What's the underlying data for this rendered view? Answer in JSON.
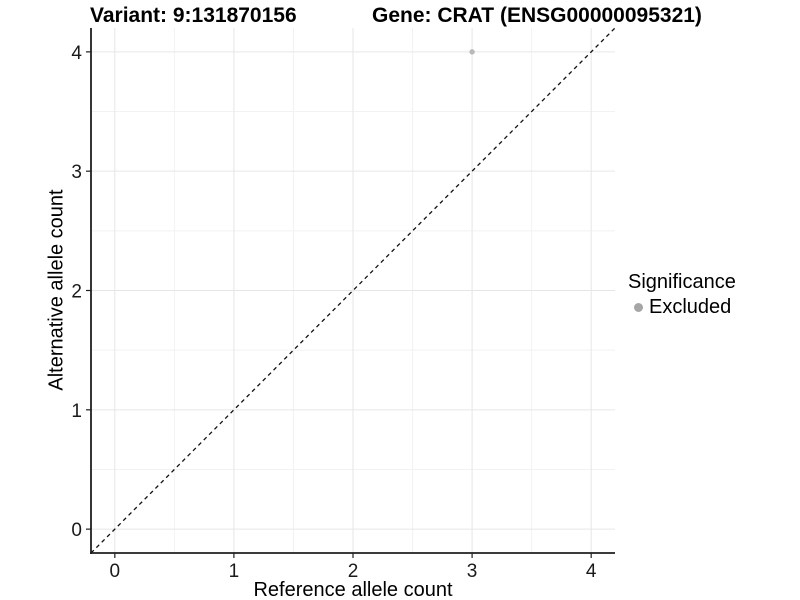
{
  "titles": {
    "variant": "Variant: 9:131870156",
    "gene": "Gene: CRAT (ENSG00000095321)"
  },
  "axes": {
    "x_label": "Reference allele count",
    "y_label": "Alternative allele count"
  },
  "legend": {
    "title": "Significance",
    "items": [
      {
        "label": "Excluded",
        "color": "#a6a6a6"
      }
    ]
  },
  "chart_data": {
    "type": "scatter",
    "title": "Variant: 9:131870156    Gene: CRAT (ENSG00000095321)",
    "xlabel": "Reference allele count",
    "ylabel": "Alternative allele count",
    "xlim": [
      -0.2,
      4.2
    ],
    "ylim": [
      -0.2,
      4.2
    ],
    "x_ticks": [
      0,
      1,
      2,
      3,
      4
    ],
    "y_ticks": [
      0,
      1,
      2,
      3,
      4
    ],
    "grid": {
      "major": true,
      "minor": true
    },
    "legend_title": "Significance",
    "legend_position": "right",
    "series": [
      {
        "name": "Excluded",
        "marker": "circle",
        "color": "#b9b9b9",
        "points": [
          {
            "x": 3,
            "y": 4
          }
        ]
      }
    ],
    "reference_line": {
      "kind": "identity",
      "slope": 1,
      "intercept": 0,
      "style": "dashed",
      "color": "#111111"
    }
  },
  "colors": {
    "background": "#ffffff",
    "grid_major": "#e6e6e6",
    "grid_minor": "#f2f2f2",
    "axis_line": "#1f1f1f",
    "tick_text": "#1a1a1a",
    "point": "#b9b9b9",
    "legend_point": "#a6a6a6"
  }
}
